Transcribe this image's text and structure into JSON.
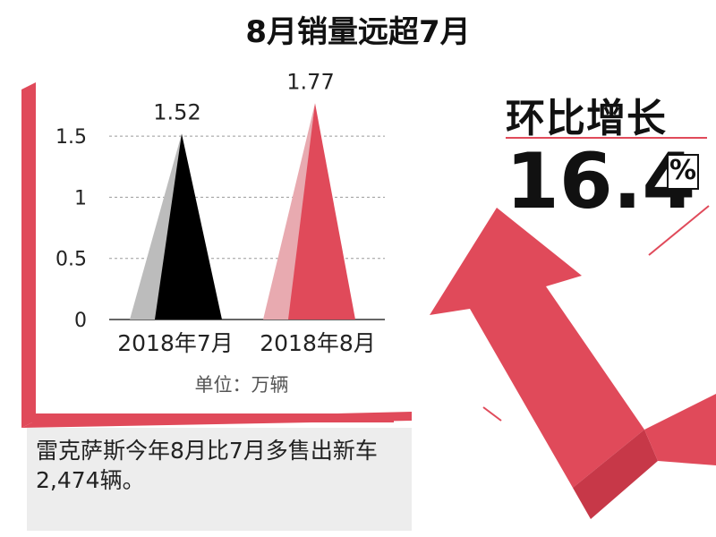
{
  "title": "8月销量远超7月",
  "unit_label": "单位：万辆",
  "caption": "雷克萨斯今年8月比7月多售出新车2,474辆。",
  "growth": {
    "label": "环比增长",
    "value": "16.4",
    "symbol": "%"
  },
  "colors": {
    "accent": "#e04a5a",
    "dark": "#000000",
    "grey": "#bcbcbc",
    "pink": "#e8aab0"
  },
  "chart_data": {
    "type": "bar",
    "categories": [
      "2018年7月",
      "2018年8月"
    ],
    "values": [
      1.52,
      1.77
    ],
    "value_labels": [
      "1.52",
      "1.77"
    ],
    "y_ticks": [
      0,
      0.5,
      1,
      1.5
    ],
    "ylim": [
      0,
      1.75
    ],
    "grid": true
  }
}
